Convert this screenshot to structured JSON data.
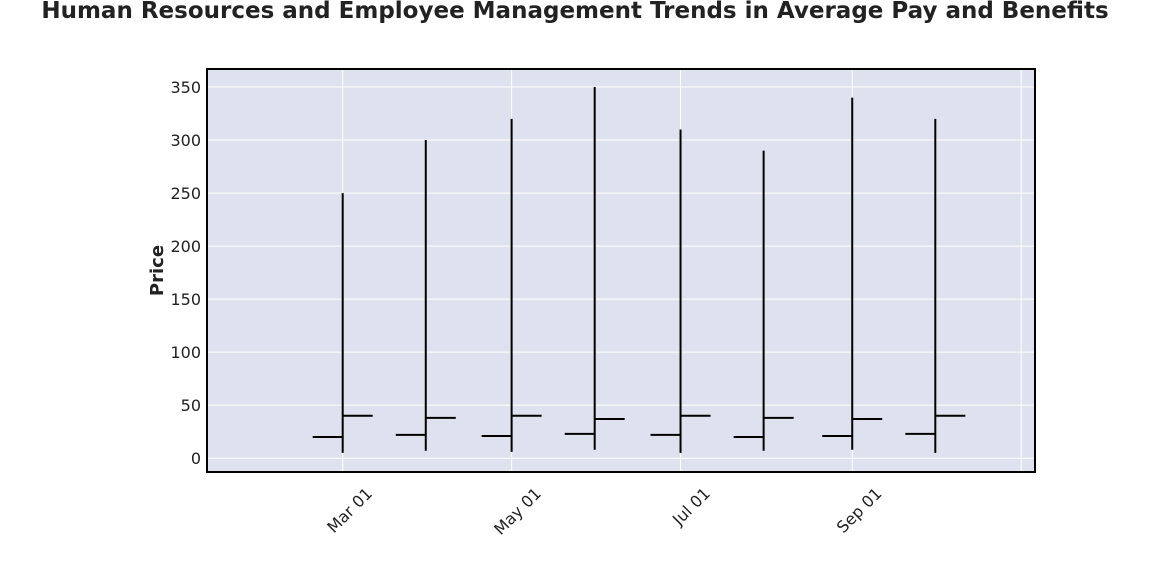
{
  "chart_data": {
    "type": "ohlc",
    "title": "Human Resources and Employee Management Trends in Average Pay and Benefits",
    "xlabel": "",
    "ylabel": "Price",
    "ylim": [
      -13,
      367
    ],
    "yticks": [
      0,
      50,
      100,
      150,
      200,
      250,
      300,
      350
    ],
    "xlim": [
      "2023-01-11",
      "2023-11-06"
    ],
    "xticks": [
      {
        "date": "2023-03-01",
        "label": "Mar 01"
      },
      {
        "date": "2023-05-01",
        "label": "May 01"
      },
      {
        "date": "2023-07-01",
        "label": "Jul 01"
      },
      {
        "date": "2023-09-01",
        "label": "Sep 01"
      }
    ],
    "grid": true,
    "legend": "none",
    "colors": {
      "background": "#dde2ee",
      "grid": "#ffffff",
      "bar": "#000000",
      "frame": "#000000"
    },
    "ohlc": [
      {
        "date": "2023-03-01",
        "open": 20,
        "high": 250,
        "low": 5,
        "close": 40
      },
      {
        "date": "2023-03-31",
        "open": 22,
        "high": 300,
        "low": 7,
        "close": 38
      },
      {
        "date": "2023-05-01",
        "open": 21,
        "high": 320,
        "low": 6,
        "close": 40
      },
      {
        "date": "2023-05-31",
        "open": 23,
        "high": 350,
        "low": 8,
        "close": 37
      },
      {
        "date": "2023-07-01",
        "open": 22,
        "high": 310,
        "low": 5,
        "close": 40
      },
      {
        "date": "2023-07-31",
        "open": 20,
        "high": 290,
        "low": 7,
        "close": 38
      },
      {
        "date": "2023-09-01",
        "open": 21,
        "high": 340,
        "low": 8,
        "close": 37
      },
      {
        "date": "2023-10-01",
        "open": 23,
        "high": 320,
        "low": 5,
        "close": 40
      }
    ]
  }
}
